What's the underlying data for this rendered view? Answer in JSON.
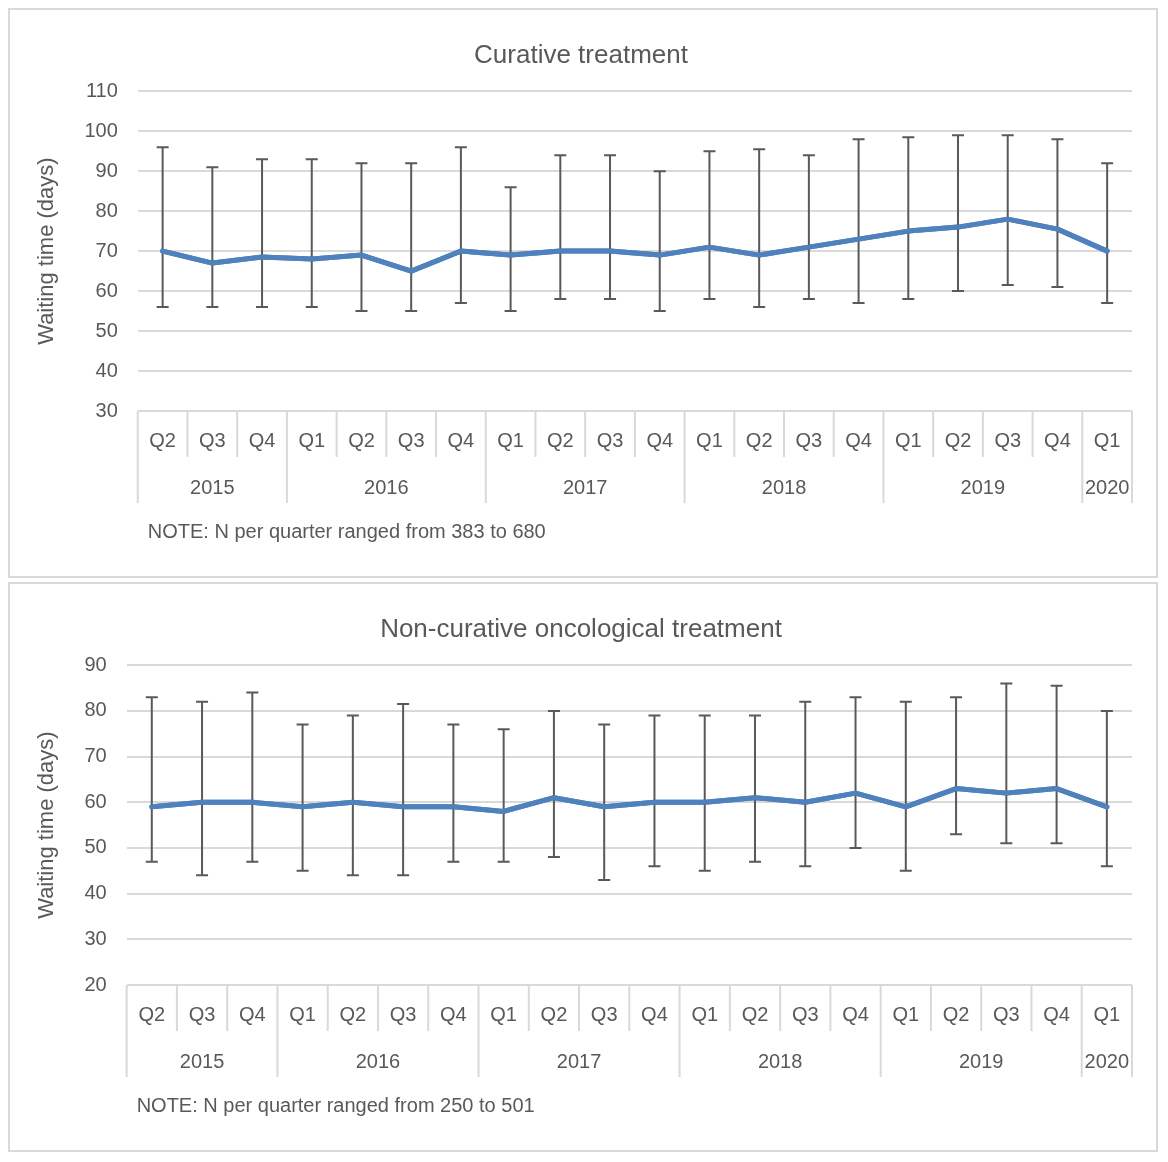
{
  "chart_data": [
    {
      "type": "line",
      "title": "Curative treatment",
      "ylabel": "Waiting time (days)",
      "categories": [
        "Q2",
        "Q3",
        "Q4",
        "Q1",
        "Q2",
        "Q3",
        "Q4",
        "Q1",
        "Q2",
        "Q3",
        "Q4",
        "Q1",
        "Q2",
        "Q3",
        "Q4",
        "Q1",
        "Q2",
        "Q3",
        "Q4",
        "Q1"
      ],
      "series": [
        {
          "color": "#4f81bd",
          "values": [
            70,
            67,
            68.5,
            68,
            69,
            65,
            70,
            69,
            70,
            70,
            69,
            71,
            69,
            71,
            73,
            75,
            76,
            78,
            75.5,
            70
          ],
          "errors": [
            [
              56,
              96
            ],
            [
              56,
              91
            ],
            [
              56,
              93
            ],
            [
              56,
              93
            ],
            [
              55,
              92
            ],
            [
              55,
              92
            ],
            [
              57,
              96
            ],
            [
              55,
              86
            ],
            [
              58,
              94
            ],
            [
              58,
              94
            ],
            [
              55,
              90
            ],
            [
              58,
              95
            ],
            [
              56,
              95.5
            ],
            [
              58,
              94
            ],
            [
              57,
              98
            ],
            [
              58,
              98.5
            ],
            [
              60,
              99
            ],
            [
              61.5,
              99
            ],
            [
              61,
              98
            ],
            [
              57,
              92
            ]
          ]
        }
      ],
      "ylim": [
        30,
        110
      ],
      "yticks": [
        30,
        40,
        50,
        60,
        70,
        80,
        90,
        100,
        110
      ],
      "grid": "y",
      "marker": "none",
      "line_style": "solid",
      "legend": false,
      "annotations": [
        "2015",
        "2016",
        "2017",
        "2018",
        "2019",
        "2020",
        "NOTE: N per quarter ranged from 383 to 680"
      ]
    },
    {
      "type": "line",
      "title": "Non-curative oncological treatment",
      "ylabel": "Waiting time (days)",
      "categories": [
        "Q2",
        "Q3",
        "Q4",
        "Q1",
        "Q2",
        "Q3",
        "Q4",
        "Q1",
        "Q2",
        "Q3",
        "Q4",
        "Q1",
        "Q2",
        "Q3",
        "Q4",
        "Q1",
        "Q2",
        "Q3",
        "Q4",
        "Q1"
      ],
      "series": [
        {
          "color": "#4f81bd",
          "values": [
            59,
            60,
            60,
            59,
            60,
            59,
            59,
            58,
            61,
            59,
            60,
            60,
            61,
            60,
            62,
            59,
            63,
            62,
            63,
            59
          ],
          "errors": [
            [
              47,
              83
            ],
            [
              44,
              82
            ],
            [
              47,
              84
            ],
            [
              45,
              77
            ],
            [
              44,
              79
            ],
            [
              44,
              81.5
            ],
            [
              47,
              77
            ],
            [
              47,
              76
            ],
            [
              48,
              80
            ],
            [
              43,
              77
            ],
            [
              46,
              79
            ],
            [
              45,
              79
            ],
            [
              47,
              79
            ],
            [
              46,
              82
            ],
            [
              50,
              83
            ],
            [
              45,
              82
            ],
            [
              53,
              83
            ],
            [
              51,
              86
            ],
            [
              51,
              85.5
            ],
            [
              46,
              80
            ]
          ]
        }
      ],
      "ylim": [
        20,
        90
      ],
      "yticks": [
        20,
        30,
        40,
        50,
        60,
        70,
        80,
        90
      ],
      "grid": "y",
      "marker": "none",
      "line_style": "solid",
      "legend": false,
      "annotations": [
        "2015",
        "2016",
        "2017",
        "2018",
        "2019",
        "2020",
        "NOTE: N per quarter ranged from 250 to 501"
      ]
    }
  ]
}
